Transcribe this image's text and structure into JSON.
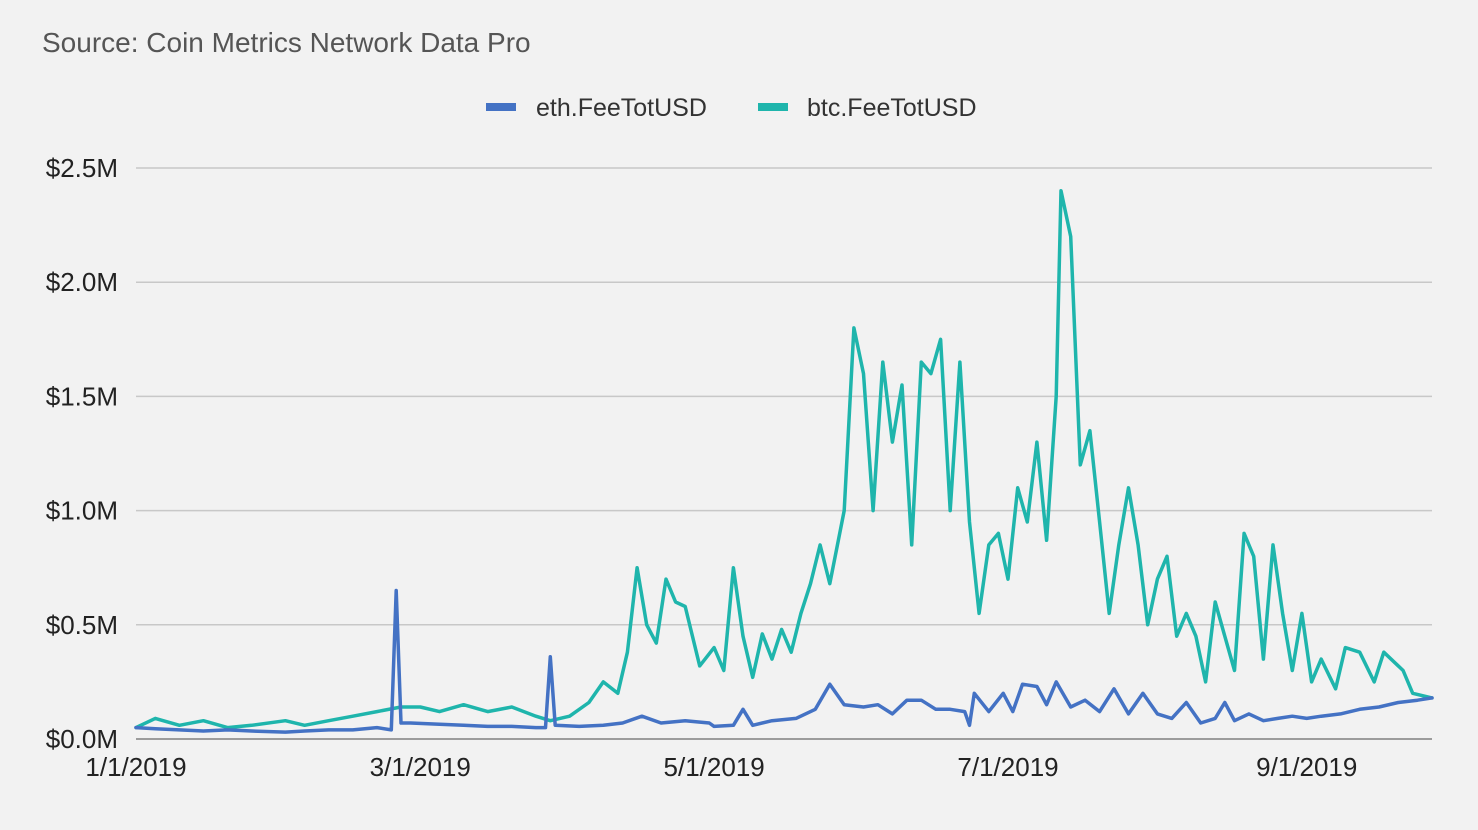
{
  "chart_data": {
    "type": "line",
    "title": "",
    "subtitle": "Source: Coin Metrics Network Data Pro",
    "xlabel": "",
    "ylabel": "",
    "x_axis": {
      "type": "date",
      "range": [
        "2019-01-01",
        "2019-09-27"
      ],
      "ticks": [
        "2019-01-01",
        "2019-03-01",
        "2019-05-01",
        "2019-07-01",
        "2019-09-01"
      ],
      "tick_labels": [
        "1/1/2019",
        "3/1/2019",
        "5/1/2019",
        "7/1/2019",
        "9/1/2019"
      ]
    },
    "y_axis": {
      "range": [
        0,
        2500000
      ],
      "ticks": [
        0,
        500000,
        1000000,
        1500000,
        2000000,
        2500000
      ],
      "tick_labels": [
        "$0.0M",
        "$0.5M",
        "$1.0M",
        "$1.5M",
        "$2.0M",
        "$2.5M"
      ]
    },
    "grid": "horizontal",
    "legend": {
      "placement": "top-center"
    },
    "series": [
      {
        "name": "eth.FeeTotUSD",
        "color": "#4472c4",
        "points": [
          [
            "2019-01-01",
            50000
          ],
          [
            "2019-01-05",
            45000
          ],
          [
            "2019-01-10",
            40000
          ],
          [
            "2019-01-15",
            35000
          ],
          [
            "2019-01-20",
            40000
          ],
          [
            "2019-01-25",
            35000
          ],
          [
            "2019-02-01",
            30000
          ],
          [
            "2019-02-05",
            35000
          ],
          [
            "2019-02-10",
            40000
          ],
          [
            "2019-02-15",
            40000
          ],
          [
            "2019-02-20",
            50000
          ],
          [
            "2019-02-23",
            40000
          ],
          [
            "2019-02-24",
            650000
          ],
          [
            "2019-02-25",
            70000
          ],
          [
            "2019-02-27",
            70000
          ],
          [
            "2019-03-05",
            65000
          ],
          [
            "2019-03-10",
            60000
          ],
          [
            "2019-03-15",
            55000
          ],
          [
            "2019-03-20",
            55000
          ],
          [
            "2019-03-25",
            50000
          ],
          [
            "2019-03-27",
            50000
          ],
          [
            "2019-03-28",
            360000
          ],
          [
            "2019-03-29",
            60000
          ],
          [
            "2019-04-03",
            55000
          ],
          [
            "2019-04-08",
            60000
          ],
          [
            "2019-04-12",
            70000
          ],
          [
            "2019-04-16",
            100000
          ],
          [
            "2019-04-20",
            70000
          ],
          [
            "2019-04-25",
            80000
          ],
          [
            "2019-04-30",
            70000
          ],
          [
            "2019-05-01",
            55000
          ],
          [
            "2019-05-05",
            60000
          ],
          [
            "2019-05-07",
            130000
          ],
          [
            "2019-05-09",
            60000
          ],
          [
            "2019-05-13",
            80000
          ],
          [
            "2019-05-18",
            90000
          ],
          [
            "2019-05-22",
            130000
          ],
          [
            "2019-05-25",
            240000
          ],
          [
            "2019-05-28",
            150000
          ],
          [
            "2019-06-01",
            140000
          ],
          [
            "2019-06-04",
            150000
          ],
          [
            "2019-06-07",
            110000
          ],
          [
            "2019-06-10",
            170000
          ],
          [
            "2019-06-13",
            170000
          ],
          [
            "2019-06-16",
            130000
          ],
          [
            "2019-06-19",
            130000
          ],
          [
            "2019-06-22",
            120000
          ],
          [
            "2019-06-23",
            60000
          ],
          [
            "2019-06-24",
            200000
          ],
          [
            "2019-06-27",
            120000
          ],
          [
            "2019-06-30",
            200000
          ],
          [
            "2019-07-02",
            120000
          ],
          [
            "2019-07-04",
            240000
          ],
          [
            "2019-07-07",
            230000
          ],
          [
            "2019-07-09",
            150000
          ],
          [
            "2019-07-11",
            250000
          ],
          [
            "2019-07-14",
            140000
          ],
          [
            "2019-07-17",
            170000
          ],
          [
            "2019-07-20",
            120000
          ],
          [
            "2019-07-23",
            220000
          ],
          [
            "2019-07-26",
            110000
          ],
          [
            "2019-07-29",
            200000
          ],
          [
            "2019-08-01",
            110000
          ],
          [
            "2019-08-04",
            90000
          ],
          [
            "2019-08-07",
            160000
          ],
          [
            "2019-08-10",
            70000
          ],
          [
            "2019-08-13",
            90000
          ],
          [
            "2019-08-15",
            160000
          ],
          [
            "2019-08-17",
            80000
          ],
          [
            "2019-08-20",
            110000
          ],
          [
            "2019-08-23",
            80000
          ],
          [
            "2019-08-26",
            90000
          ],
          [
            "2019-08-29",
            100000
          ],
          [
            "2019-09-01",
            90000
          ],
          [
            "2019-09-04",
            100000
          ],
          [
            "2019-09-08",
            110000
          ],
          [
            "2019-09-12",
            130000
          ],
          [
            "2019-09-16",
            140000
          ],
          [
            "2019-09-20",
            160000
          ],
          [
            "2019-09-24",
            170000
          ],
          [
            "2019-09-27",
            180000
          ]
        ]
      },
      {
        "name": "btc.FeeTotUSD",
        "color": "#1fb5ac",
        "points": [
          [
            "2019-01-01",
            50000
          ],
          [
            "2019-01-05",
            90000
          ],
          [
            "2019-01-10",
            60000
          ],
          [
            "2019-01-15",
            80000
          ],
          [
            "2019-01-20",
            50000
          ],
          [
            "2019-01-25",
            60000
          ],
          [
            "2019-02-01",
            80000
          ],
          [
            "2019-02-05",
            60000
          ],
          [
            "2019-02-10",
            80000
          ],
          [
            "2019-02-15",
            100000
          ],
          [
            "2019-02-20",
            120000
          ],
          [
            "2019-02-25",
            140000
          ],
          [
            "2019-03-01",
            140000
          ],
          [
            "2019-03-05",
            120000
          ],
          [
            "2019-03-10",
            150000
          ],
          [
            "2019-03-15",
            120000
          ],
          [
            "2019-03-20",
            140000
          ],
          [
            "2019-03-25",
            100000
          ],
          [
            "2019-03-28",
            80000
          ],
          [
            "2019-04-01",
            100000
          ],
          [
            "2019-04-05",
            160000
          ],
          [
            "2019-04-08",
            250000
          ],
          [
            "2019-04-11",
            200000
          ],
          [
            "2019-04-13",
            380000
          ],
          [
            "2019-04-15",
            750000
          ],
          [
            "2019-04-17",
            500000
          ],
          [
            "2019-04-19",
            420000
          ],
          [
            "2019-04-21",
            700000
          ],
          [
            "2019-04-23",
            600000
          ],
          [
            "2019-04-25",
            580000
          ],
          [
            "2019-04-28",
            320000
          ],
          [
            "2019-05-01",
            400000
          ],
          [
            "2019-05-03",
            300000
          ],
          [
            "2019-05-05",
            750000
          ],
          [
            "2019-05-07",
            450000
          ],
          [
            "2019-05-09",
            270000
          ],
          [
            "2019-05-11",
            460000
          ],
          [
            "2019-05-13",
            350000
          ],
          [
            "2019-05-15",
            480000
          ],
          [
            "2019-05-17",
            380000
          ],
          [
            "2019-05-19",
            550000
          ],
          [
            "2019-05-21",
            680000
          ],
          [
            "2019-05-23",
            850000
          ],
          [
            "2019-05-25",
            680000
          ],
          [
            "2019-05-28",
            1000000
          ],
          [
            "2019-05-30",
            1800000
          ],
          [
            "2019-06-01",
            1600000
          ],
          [
            "2019-06-03",
            1000000
          ],
          [
            "2019-06-05",
            1650000
          ],
          [
            "2019-06-07",
            1300000
          ],
          [
            "2019-06-09",
            1550000
          ],
          [
            "2019-06-11",
            850000
          ],
          [
            "2019-06-13",
            1650000
          ],
          [
            "2019-06-15",
            1600000
          ],
          [
            "2019-06-17",
            1750000
          ],
          [
            "2019-06-19",
            1000000
          ],
          [
            "2019-06-21",
            1650000
          ],
          [
            "2019-06-23",
            950000
          ],
          [
            "2019-06-25",
            550000
          ],
          [
            "2019-06-27",
            850000
          ],
          [
            "2019-06-29",
            900000
          ],
          [
            "2019-07-01",
            700000
          ],
          [
            "2019-07-03",
            1100000
          ],
          [
            "2019-07-05",
            950000
          ],
          [
            "2019-07-07",
            1300000
          ],
          [
            "2019-07-09",
            870000
          ],
          [
            "2019-07-11",
            1500000
          ],
          [
            "2019-07-12",
            2400000
          ],
          [
            "2019-07-14",
            2200000
          ],
          [
            "2019-07-16",
            1200000
          ],
          [
            "2019-07-18",
            1350000
          ],
          [
            "2019-07-20",
            950000
          ],
          [
            "2019-07-22",
            550000
          ],
          [
            "2019-07-24",
            850000
          ],
          [
            "2019-07-26",
            1100000
          ],
          [
            "2019-07-28",
            850000
          ],
          [
            "2019-07-30",
            500000
          ],
          [
            "2019-08-01",
            700000
          ],
          [
            "2019-08-03",
            800000
          ],
          [
            "2019-08-05",
            450000
          ],
          [
            "2019-08-07",
            550000
          ],
          [
            "2019-08-09",
            450000
          ],
          [
            "2019-08-11",
            250000
          ],
          [
            "2019-08-13",
            600000
          ],
          [
            "2019-08-15",
            450000
          ],
          [
            "2019-08-17",
            300000
          ],
          [
            "2019-08-19",
            900000
          ],
          [
            "2019-08-21",
            800000
          ],
          [
            "2019-08-23",
            350000
          ],
          [
            "2019-08-25",
            850000
          ],
          [
            "2019-08-27",
            550000
          ],
          [
            "2019-08-29",
            300000
          ],
          [
            "2019-08-31",
            550000
          ],
          [
            "2019-09-02",
            250000
          ],
          [
            "2019-09-04",
            350000
          ],
          [
            "2019-09-07",
            220000
          ],
          [
            "2019-09-09",
            400000
          ],
          [
            "2019-09-12",
            380000
          ],
          [
            "2019-09-15",
            250000
          ],
          [
            "2019-09-17",
            380000
          ],
          [
            "2019-09-21",
            300000
          ],
          [
            "2019-09-23",
            200000
          ],
          [
            "2019-09-27",
            180000
          ]
        ]
      }
    ]
  }
}
